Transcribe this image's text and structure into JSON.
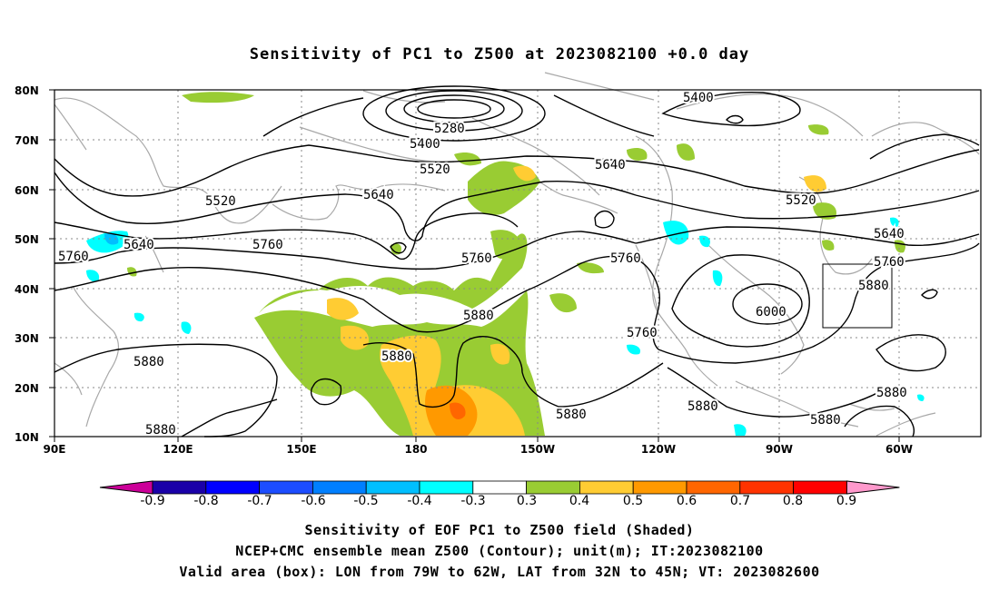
{
  "title": "Sensitivity of PC1 to Z500 at 2023082100 +0.0 day",
  "map": {
    "lon_range": [
      "90E",
      "30W"
    ],
    "lat_range": [
      "10N",
      "80N"
    ],
    "lat_labels": [
      "80N",
      "70N",
      "60N",
      "50N",
      "40N",
      "30N",
      "20N",
      "10N"
    ],
    "lon_labels": [
      "90E",
      "120E",
      "150E",
      "180",
      "150W",
      "120W",
      "90W",
      "60W"
    ],
    "grid": "dotted",
    "contour_unit": "m",
    "contour_labels": [
      "5280",
      "5400",
      "5400",
      "5520",
      "5520",
      "5520",
      "5640",
      "5640",
      "5640",
      "5640",
      "5760",
      "5760",
      "5760",
      "5760",
      "5760",
      "5760",
      "5880",
      "5880",
      "5880",
      "5880",
      "5880",
      "5880",
      "5880",
      "5880",
      "6000"
    ],
    "valid_box": {
      "lon_from": "79W",
      "lon_to": "62W",
      "lat_from": "32N",
      "lat_to": "45N"
    }
  },
  "colorbar": {
    "labels": [
      "-0.9",
      "-0.8",
      "-0.7",
      "-0.6",
      "-0.5",
      "-0.4",
      "-0.3",
      "0.3",
      "0.4",
      "0.5",
      "0.6",
      "0.7",
      "0.8",
      "0.9"
    ],
    "colors": [
      "#1a00a8",
      "#0000ff",
      "#1c4dff",
      "#007fff",
      "#00bfff",
      "#00ffff",
      "#ffffff",
      "#99cc33",
      "#ffcc33",
      "#ff9900",
      "#ff6600",
      "#ff3300",
      "#ff0000"
    ],
    "low_end_color": "#cc0099",
    "high_end_color": "#ff99cc"
  },
  "captions": {
    "line1": "Sensitivity of EOF PC1 to Z500 field (Shaded)",
    "line2": "NCEP+CMC ensemble mean Z500 (Contour); unit(m); IT:2023082100",
    "line3": "Valid area (box): LON from 79W to 62W, LAT from 32N to 45N; VT: 2023082600"
  }
}
